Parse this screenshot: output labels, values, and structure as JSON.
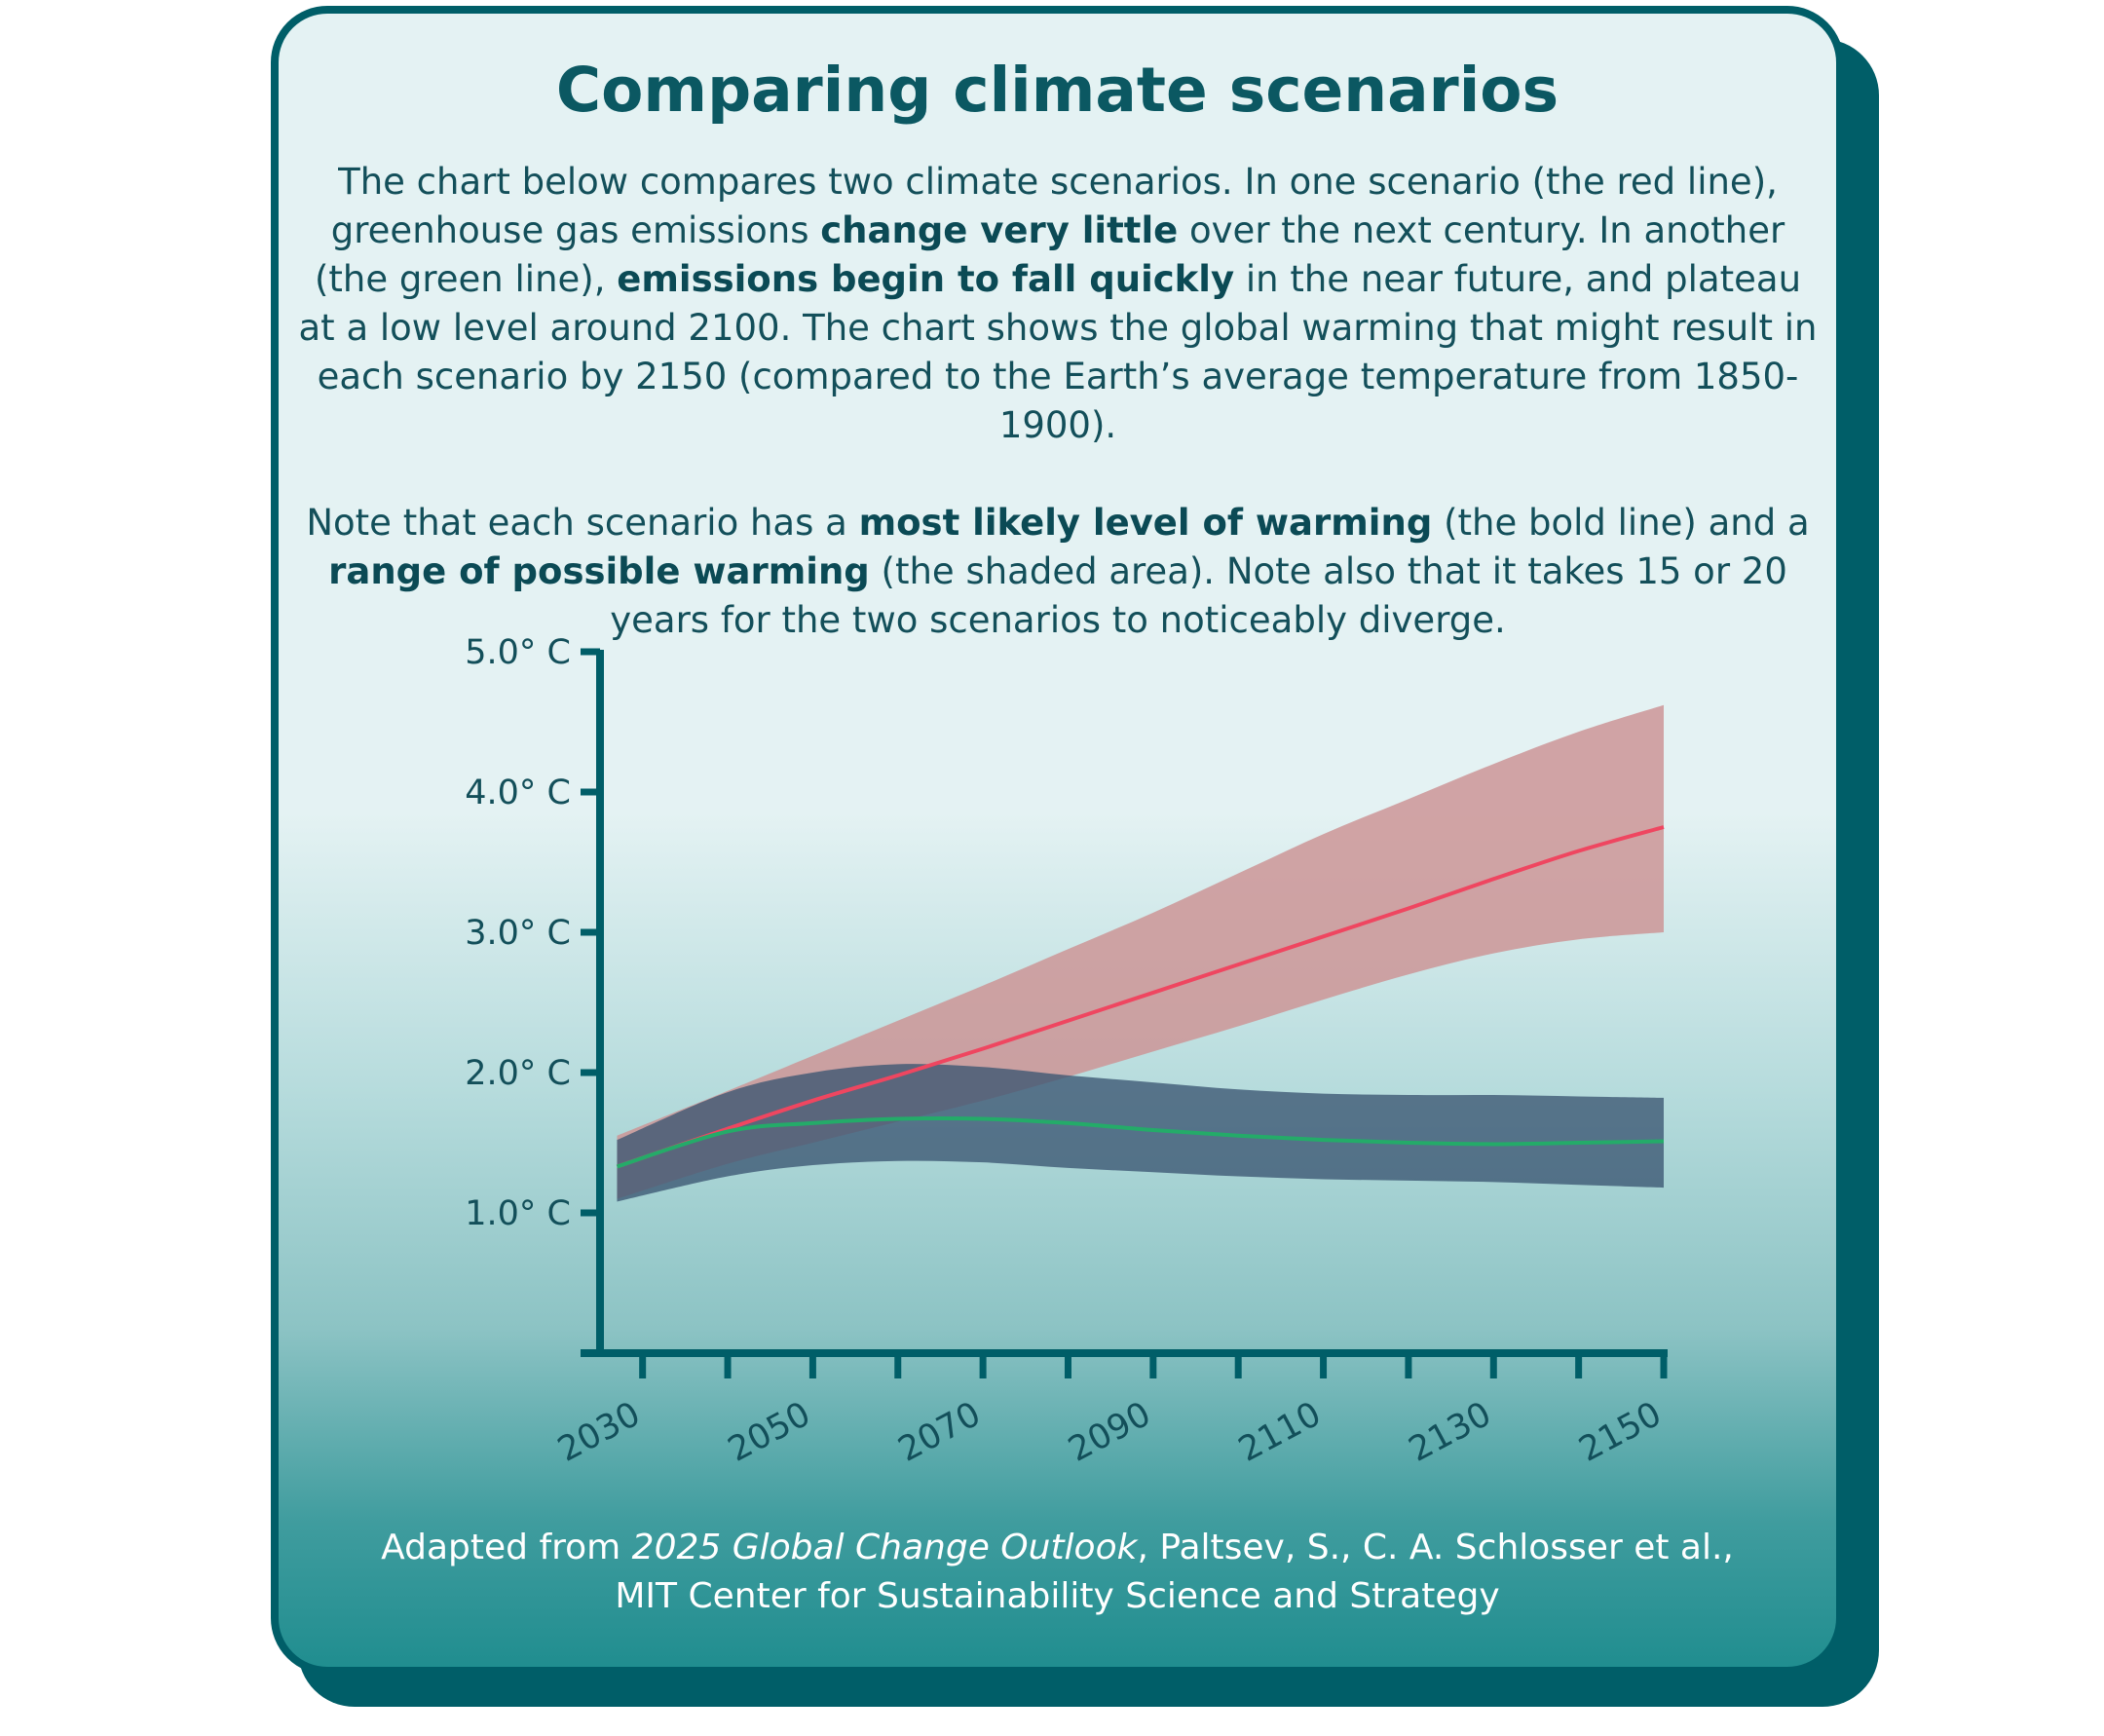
{
  "title": "Comparing climate scenarios",
  "intro": {
    "p1": [
      "The chart below compares two climate scenarios. In one scenario (the red line), greenhouse gas emissions ",
      "change very little",
      " over the next century. In another (the green line), ",
      "emissions begin to fall quickly",
      " in the near future, and plateau at a low level around 2100. The chart shows the global warming that might result in each scenario by 2150 (compared to the Earth’s average temperature from 1850-1900)."
    ],
    "p2": [
      "Note that each scenario has a ",
      "most likely level of warming",
      " (the bold line) and a ",
      "range of possible warming",
      " (the shaded area). Note also that it takes 15 or 20 years for the two scenarios to noticeably diverge."
    ]
  },
  "credit": {
    "prefix": "Adapted from ",
    "work": "2025 Global Change Outlook",
    "authors": ", Paltsev, S., C. A. Schlosser et al.,",
    "org": "MIT Center for Sustainability Science and Strategy"
  },
  "colors": {
    "axis": "#005e68",
    "red_line": "#ef4660",
    "red_band": "#cc9596",
    "green_line": "#24ab69",
    "green_band": "#3b5672"
  },
  "chart_data": {
    "type": "area",
    "ylim": [
      0,
      5
    ],
    "xlim": [
      2025,
      2150
    ],
    "yticks": [
      1,
      2,
      3,
      4,
      5
    ],
    "ytick_labels": [
      "1.0° C",
      "2.0° C",
      "3.0° C",
      "4.0° C",
      "5.0° C"
    ],
    "xticks": [
      2030,
      2040,
      2050,
      2060,
      2070,
      2080,
      2090,
      2100,
      2110,
      2120,
      2130,
      2140,
      2150
    ],
    "xtick_labels": [
      "2030",
      "2050",
      "2070",
      "2090",
      "2110",
      "2130",
      "2150"
    ],
    "x": [
      2027,
      2040,
      2050,
      2060,
      2070,
      2080,
      2090,
      2100,
      2110,
      2120,
      2130,
      2140,
      2150
    ],
    "series": [
      {
        "color": "red",
        "median": [
          1.33,
          1.6,
          1.8,
          1.98,
          2.17,
          2.37,
          2.57,
          2.77,
          2.97,
          3.17,
          3.38,
          3.58,
          3.75
        ],
        "upper": [
          1.55,
          1.87,
          2.12,
          2.37,
          2.62,
          2.88,
          3.14,
          3.42,
          3.7,
          3.95,
          4.2,
          4.43,
          4.62
        ],
        "lower": [
          1.1,
          1.35,
          1.5,
          1.65,
          1.8,
          1.97,
          2.15,
          2.33,
          2.52,
          2.7,
          2.85,
          2.95,
          3.0
        ]
      },
      {
        "color": "green",
        "median": [
          1.33,
          1.58,
          1.64,
          1.67,
          1.67,
          1.64,
          1.59,
          1.55,
          1.52,
          1.5,
          1.49,
          1.5,
          1.51
        ],
        "upper": [
          1.52,
          1.86,
          2.0,
          2.06,
          2.04,
          1.98,
          1.93,
          1.88,
          1.85,
          1.84,
          1.84,
          1.83,
          1.82
        ],
        "lower": [
          1.08,
          1.26,
          1.34,
          1.37,
          1.36,
          1.32,
          1.29,
          1.26,
          1.24,
          1.23,
          1.22,
          1.2,
          1.18
        ]
      }
    ]
  }
}
